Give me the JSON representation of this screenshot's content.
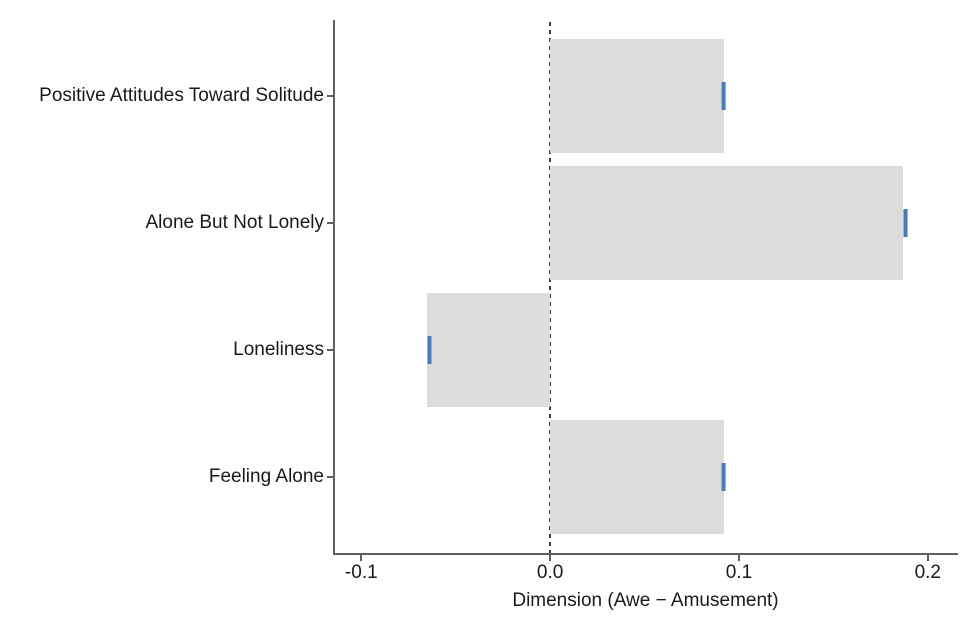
{
  "chart_data": {
    "type": "bar",
    "orientation": "horizontal",
    "title": "",
    "xlabel": "Dimension (Awe − Amusement)",
    "ylabel": "",
    "categories": [
      "Positive Attitudes Toward Solitude",
      "Alone But Not Lonely",
      "Loneliness",
      "Feeling Alone"
    ],
    "values": [
      0.092,
      0.187,
      -0.065,
      0.092
    ],
    "point_markers": [
      0.092,
      0.188,
      -0.064,
      0.092
    ],
    "x_ticks": [
      -0.1,
      0.0,
      0.1,
      0.2
    ],
    "x_tick_labels": [
      "-0.1",
      "0.0",
      "0.1",
      "0.2"
    ],
    "xlim": [
      -0.115,
      0.216
    ],
    "zero_reference_line": "dashed",
    "grid": "off",
    "legend": "none",
    "colors": {
      "bar_fill": "#dcdcdc",
      "marker": "#4a7ab8",
      "marker_edge": "#9bb5d8",
      "axis_line": "#5f5f5f",
      "zero_line": "#3e3e3e",
      "text": "#1a1a1a",
      "background": "#ffffff"
    }
  }
}
